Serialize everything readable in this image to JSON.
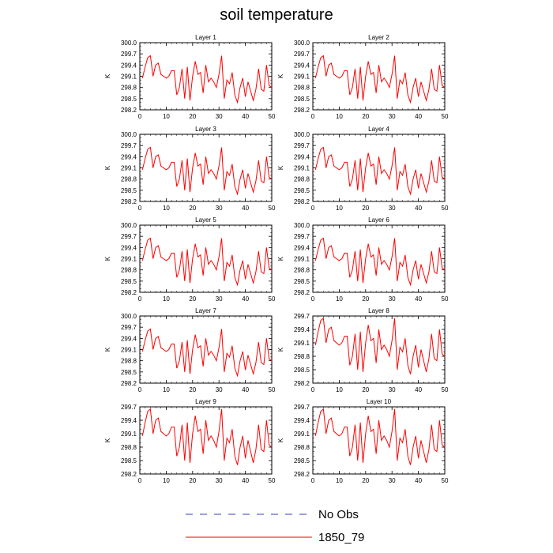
{
  "page": {
    "title": "soil temperature"
  },
  "chart_data": {
    "type": "line",
    "title": "soil temperature",
    "xlabel": "",
    "ylabel": "K",
    "xlim": [
      0,
      50
    ],
    "xticks": [
      0,
      10,
      20,
      30,
      40,
      50
    ],
    "panels": [
      {
        "title": "Layer 1",
        "ylim": [
          298.2,
          300.0
        ],
        "yticks": [
          "298.2",
          "298.5",
          "298.8",
          "299.1",
          "299.4",
          "299.7",
          "300.0"
        ]
      },
      {
        "title": "Layer 2",
        "ylim": [
          298.2,
          300.0
        ],
        "yticks": [
          "298.2",
          "298.5",
          "298.8",
          "299.1",
          "299.4",
          "299.7",
          "300.0"
        ]
      },
      {
        "title": "Layer 3",
        "ylim": [
          298.2,
          300.0
        ],
        "yticks": [
          "298.2",
          "298.5",
          "298.8",
          "299.1",
          "299.4",
          "299.7",
          "300.0"
        ]
      },
      {
        "title": "Layer 4",
        "ylim": [
          298.2,
          300.0
        ],
        "yticks": [
          "298.2",
          "298.5",
          "298.8",
          "299.1",
          "299.4",
          "299.7",
          "300.0"
        ]
      },
      {
        "title": "Layer 5",
        "ylim": [
          298.2,
          300.0
        ],
        "yticks": [
          "298.2",
          "298.5",
          "298.8",
          "299.1",
          "299.4",
          "299.7",
          "300.0"
        ]
      },
      {
        "title": "Layer 6",
        "ylim": [
          298.2,
          300.0
        ],
        "yticks": [
          "298.2",
          "298.5",
          "298.8",
          "299.1",
          "299.4",
          "299.7",
          "300.0"
        ]
      },
      {
        "title": "Layer 7",
        "ylim": [
          298.2,
          300.0
        ],
        "yticks": [
          "298.2",
          "298.5",
          "298.8",
          "299.1",
          "299.4",
          "299.7",
          "300.0"
        ]
      },
      {
        "title": "Layer 8",
        "ylim": [
          298.2,
          299.7
        ],
        "yticks": [
          "298.2",
          "298.5",
          "298.8",
          "299.1",
          "299.4",
          "299.7"
        ]
      },
      {
        "title": "Layer 9",
        "ylim": [
          298.2,
          299.7
        ],
        "yticks": [
          "298.2",
          "298.5",
          "298.8",
          "299.1",
          "299.4",
          "299.7"
        ]
      },
      {
        "title": "Layer 10",
        "ylim": [
          298.2,
          299.7
        ],
        "yticks": [
          "298.2",
          "298.5",
          "298.8",
          "299.1",
          "299.4",
          "299.7"
        ]
      }
    ],
    "series": [
      {
        "name": "1850_79",
        "color": "#ff0000",
        "dash": false,
        "x": [
          1,
          2,
          3,
          4,
          5,
          6,
          7,
          8,
          9,
          10,
          11,
          12,
          13,
          14,
          15,
          16,
          17,
          18,
          19,
          20,
          21,
          22,
          23,
          24,
          25,
          26,
          27,
          28,
          29,
          30,
          31,
          32,
          33,
          34,
          35,
          36,
          37,
          38,
          39,
          40,
          41,
          42,
          43,
          44,
          45,
          46,
          47,
          48,
          49,
          50
        ],
        "values": [
          299.05,
          299.35,
          299.6,
          299.65,
          299.1,
          299.4,
          299.45,
          299.15,
          299.1,
          299.05,
          299.1,
          299.25,
          299.25,
          298.6,
          298.8,
          299.3,
          298.5,
          299.35,
          298.45,
          299.1,
          299.5,
          299.15,
          299.2,
          298.65,
          299.4,
          298.95,
          299.05,
          298.95,
          298.8,
          299.15,
          299.65,
          298.5,
          299.0,
          298.9,
          299.2,
          298.6,
          298.4,
          298.8,
          299.05,
          298.55,
          298.95,
          298.7,
          298.45,
          298.75,
          299.3,
          298.75,
          298.7,
          299.4,
          298.85,
          298.8
        ]
      },
      {
        "name": "No Obs",
        "color": "#3b3bb8",
        "dash": true,
        "values": []
      }
    ],
    "legend": {
      "placement": "bottom",
      "items": [
        "No Obs",
        "1850_79"
      ]
    }
  }
}
